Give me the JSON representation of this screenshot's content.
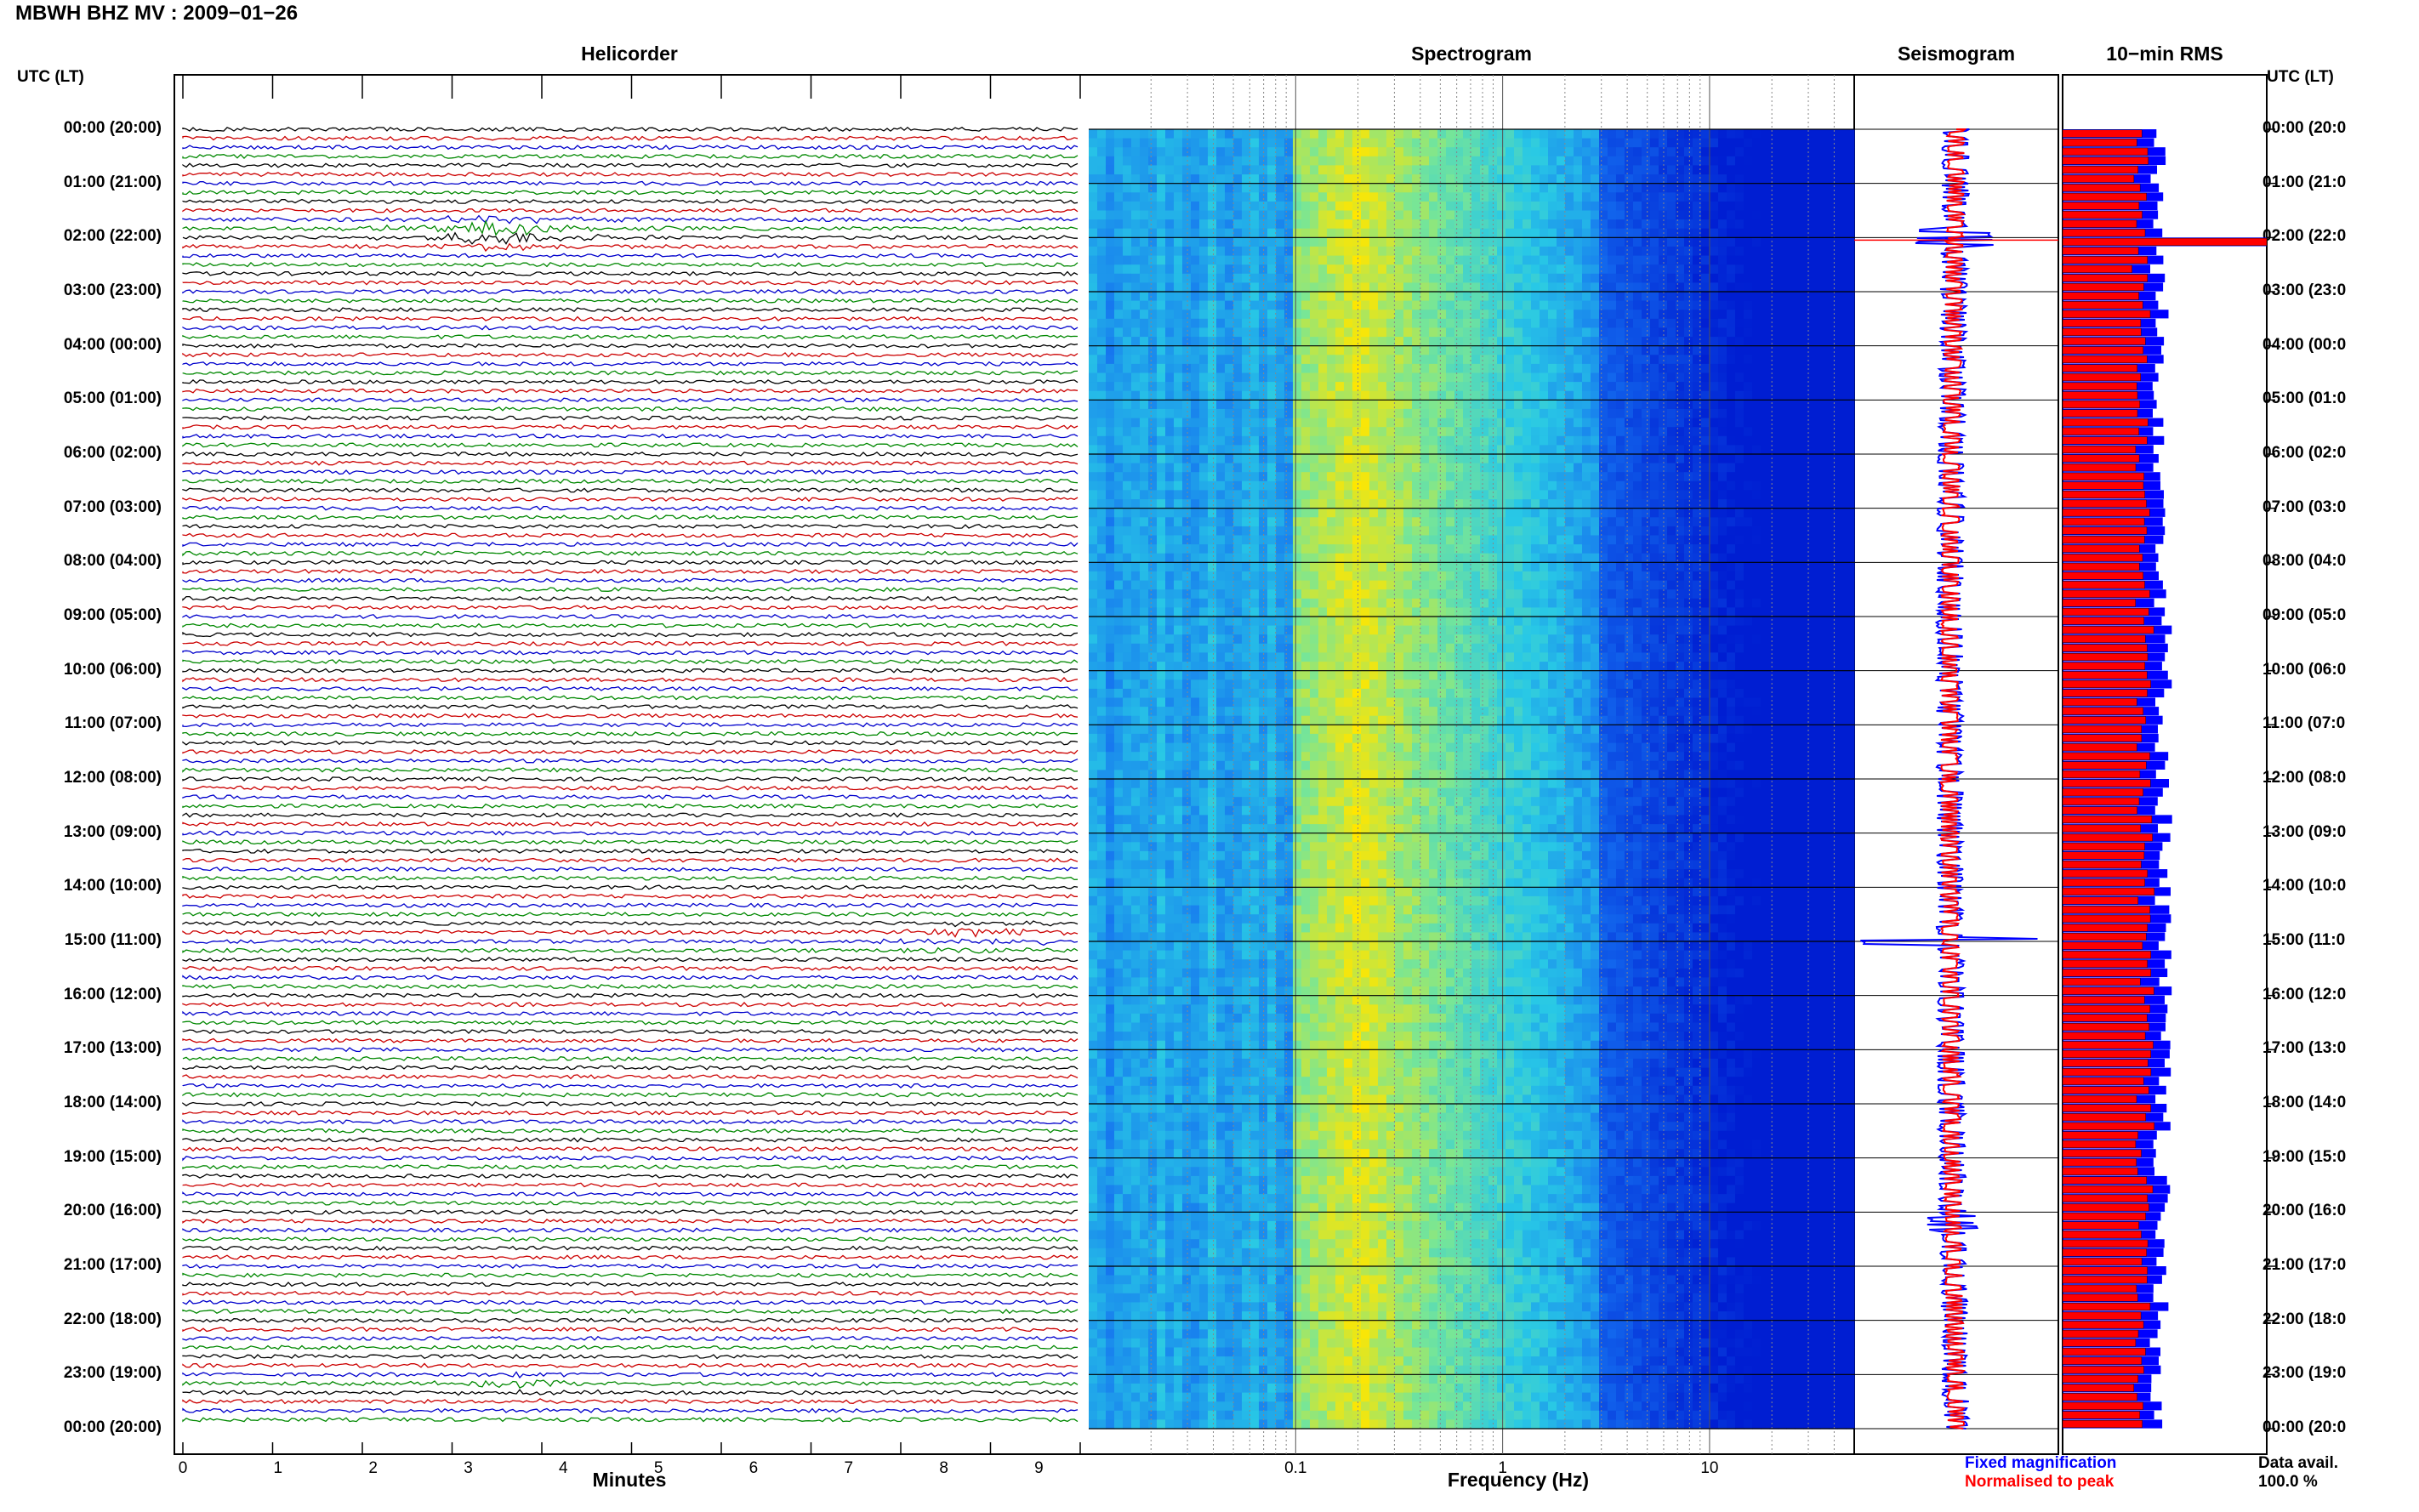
{
  "header": {
    "title": "MBWH BHZ MV : 2009−01−26",
    "left_axis_label": "UTC (LT)",
    "right_axis_label": "UTC (LT)"
  },
  "panels": {
    "helicorder": "Helicorder",
    "spectrogram": "Spectrogram",
    "seismogram": "Seismogram",
    "rms": "10−min RMS"
  },
  "time_labels": [
    "00:00 (20:00)",
    "01:00 (21:00)",
    "02:00 (22:00)",
    "03:00 (23:00)",
    "04:00 (00:00)",
    "05:00 (01:00)",
    "06:00 (02:00)",
    "07:00 (03:00)",
    "08:00 (04:00)",
    "09:00 (05:00)",
    "10:00 (06:00)",
    "11:00 (07:00)",
    "12:00 (08:00)",
    "13:00 (09:00)",
    "14:00 (10:00)",
    "15:00 (11:00)",
    "16:00 (12:00)",
    "17:00 (13:00)",
    "18:00 (14:00)",
    "19:00 (15:00)",
    "20:00 (16:00)",
    "21:00 (17:00)",
    "22:00 (18:00)",
    "23:00 (19:00)",
    "00:00 (20:00)"
  ],
  "right_time_labels": [
    "00:00 (20:0",
    "01:00 (21:0",
    "02:00 (22:0",
    "03:00 (23:0",
    "04:00 (00:0",
    "05:00 (01:0",
    "06:00 (02:0",
    "07:00 (03:0",
    "08:00 (04:0",
    "09:00 (05:0",
    "10:00 (06:0",
    "11:00 (07:0",
    "12:00 (08:0",
    "13:00 (09:0",
    "14:00 (10:0",
    "15:00 (11:0",
    "16:00 (12:0",
    "17:00 (13:0",
    "18:00 (14:0",
    "19:00 (15:0",
    "20:00 (16:0",
    "21:00 (17:0",
    "22:00 (18:0",
    "23:00 (19:0",
    "00:00 (20:0"
  ],
  "x_axes": {
    "helicorder": {
      "label": "Minutes",
      "ticks": [
        "0",
        "1",
        "2",
        "3",
        "4",
        "5",
        "6",
        "7",
        "8",
        "9"
      ]
    },
    "spectrogram": {
      "label": "Frequency (Hz)",
      "ticks": [
        "0.1",
        "1",
        "10"
      ]
    }
  },
  "legend": {
    "fixed": "Fixed magnification",
    "normalised": "Normalised to peak",
    "data_avail_label": "Data avail.",
    "data_avail_value": "100.0 %"
  },
  "colors": {
    "trace_cycle": [
      "#000000",
      "#cc0000",
      "#0000cc",
      "#008800"
    ],
    "fixed": "#0000ff",
    "normalised": "#ff0000",
    "spectrogram_low": "#0000c8",
    "spectrogram_high": "#ffee00"
  },
  "chart_data": [
    {
      "type": "line",
      "name": "helicorder",
      "xlabel": "Minutes",
      "xlim": [
        0,
        10
      ],
      "traces_per_hour": 6,
      "hours": 24,
      "events": [
        {
          "utc_hour": 1.9,
          "minute": 3.5,
          "amplitude": "large"
        },
        {
          "utc_hour": 14.9,
          "minute": 8.9,
          "amplitude": "medium"
        },
        {
          "utc_hour": 23.2,
          "minute": 3.8,
          "amplitude": "small"
        }
      ]
    },
    {
      "type": "heatmap",
      "name": "spectrogram",
      "xlabel": "Frequency (Hz)",
      "xscale": "log",
      "xlim": [
        0.01,
        50
      ],
      "peak_frequency_hz": 0.2,
      "high_energy_band_hz": [
        0.15,
        0.5
      ],
      "ylim_utc_hours": [
        0,
        24
      ]
    },
    {
      "type": "bar",
      "name": "10-min RMS",
      "hours": 24,
      "bins_per_hour": 6,
      "series": [
        {
          "name": "Fixed magnification",
          "relative_level": 1.0
        },
        {
          "name": "Normalised to peak",
          "relative_level": 0.85
        }
      ],
      "spike_utc_hour": 2.0
    }
  ]
}
